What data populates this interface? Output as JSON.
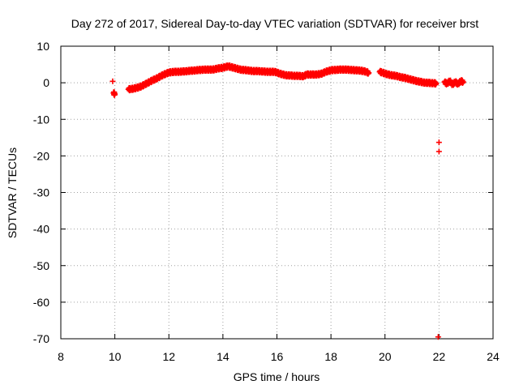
{
  "chart_data": {
    "type": "scatter",
    "title": "Day 272 of 2017, Sidereal Day-to-day VTEC variation (SDTVAR) for receiver brst",
    "xlabel": "GPS time / hours",
    "ylabel": "SDTVAR / TECUs",
    "xlim": [
      8,
      24
    ],
    "ylim": [
      -70,
      10
    ],
    "xticks": [
      8,
      10,
      12,
      14,
      16,
      18,
      20,
      22,
      24
    ],
    "yticks": [
      10,
      0,
      -10,
      -20,
      -30,
      -40,
      -50,
      -60,
      -70
    ],
    "grid": true,
    "marker": "plus",
    "color": "#ff0000",
    "series": [
      {
        "name": "brst",
        "points": [
          [
            9.92,
            0.4
          ],
          [
            9.95,
            -2.8
          ],
          [
            10.0,
            -3.1
          ],
          [
            10.5,
            -1.8
          ],
          [
            10.6,
            -1.7
          ],
          [
            10.7,
            -1.6
          ],
          [
            10.8,
            -1.4
          ],
          [
            10.9,
            -1.2
          ],
          [
            11.0,
            -0.9
          ],
          [
            11.1,
            -0.5
          ],
          [
            11.2,
            -0.1
          ],
          [
            11.3,
            0.3
          ],
          [
            11.4,
            0.7
          ],
          [
            11.5,
            1.0
          ],
          [
            11.6,
            1.4
          ],
          [
            11.7,
            1.8
          ],
          [
            11.8,
            2.2
          ],
          [
            11.9,
            2.5
          ],
          [
            12.0,
            2.8
          ],
          [
            12.1,
            2.9
          ],
          [
            12.2,
            3.0
          ],
          [
            12.3,
            3.0
          ],
          [
            12.4,
            3.0
          ],
          [
            12.5,
            3.1
          ],
          [
            12.6,
            3.1
          ],
          [
            12.7,
            3.2
          ],
          [
            12.8,
            3.3
          ],
          [
            12.9,
            3.3
          ],
          [
            13.0,
            3.4
          ],
          [
            13.1,
            3.5
          ],
          [
            13.2,
            3.5
          ],
          [
            13.3,
            3.6
          ],
          [
            13.4,
            3.6
          ],
          [
            13.5,
            3.6
          ],
          [
            13.6,
            3.6
          ],
          [
            13.7,
            3.7
          ],
          [
            13.8,
            3.9
          ],
          [
            13.9,
            4.0
          ],
          [
            14.0,
            4.1
          ],
          [
            14.1,
            4.3
          ],
          [
            14.2,
            4.5
          ],
          [
            14.3,
            4.3
          ],
          [
            14.4,
            4.1
          ],
          [
            14.5,
            3.9
          ],
          [
            14.6,
            3.7
          ],
          [
            14.7,
            3.5
          ],
          [
            14.8,
            3.5
          ],
          [
            14.9,
            3.4
          ],
          [
            15.0,
            3.3
          ],
          [
            15.1,
            3.2
          ],
          [
            15.2,
            3.2
          ],
          [
            15.3,
            3.2
          ],
          [
            15.4,
            3.1
          ],
          [
            15.5,
            3.1
          ],
          [
            15.6,
            3.0
          ],
          [
            15.7,
            3.0
          ],
          [
            15.8,
            3.0
          ],
          [
            15.9,
            3.0
          ],
          [
            16.0,
            2.8
          ],
          [
            16.1,
            2.5
          ],
          [
            16.2,
            2.3
          ],
          [
            16.3,
            2.1
          ],
          [
            16.4,
            2.0
          ],
          [
            16.5,
            2.0
          ],
          [
            16.6,
            1.9
          ],
          [
            16.7,
            1.9
          ],
          [
            16.8,
            1.9
          ],
          [
            16.9,
            1.8
          ],
          [
            17.0,
            1.8
          ],
          [
            17.1,
            2.3
          ],
          [
            17.2,
            2.2
          ],
          [
            17.3,
            2.3
          ],
          [
            17.4,
            2.2
          ],
          [
            17.5,
            2.3
          ],
          [
            17.6,
            2.4
          ],
          [
            17.7,
            2.6
          ],
          [
            17.8,
            3.0
          ],
          [
            17.9,
            3.2
          ],
          [
            18.0,
            3.4
          ],
          [
            18.1,
            3.5
          ],
          [
            18.2,
            3.5
          ],
          [
            18.3,
            3.6
          ],
          [
            18.4,
            3.6
          ],
          [
            18.5,
            3.6
          ],
          [
            18.6,
            3.6
          ],
          [
            18.7,
            3.5
          ],
          [
            18.8,
            3.5
          ],
          [
            18.9,
            3.4
          ],
          [
            19.0,
            3.4
          ],
          [
            19.1,
            3.3
          ],
          [
            19.2,
            3.2
          ],
          [
            19.3,
            3.0
          ],
          [
            19.4,
            2.7
          ],
          [
            19.8,
            3.0
          ],
          [
            19.9,
            2.8
          ],
          [
            20.0,
            2.5
          ],
          [
            20.1,
            2.3
          ],
          [
            20.2,
            2.1
          ],
          [
            20.3,
            2.0
          ],
          [
            20.4,
            1.9
          ],
          [
            20.5,
            1.7
          ],
          [
            20.6,
            1.5
          ],
          [
            20.7,
            1.4
          ],
          [
            20.8,
            1.2
          ],
          [
            20.9,
            1.0
          ],
          [
            21.0,
            0.8
          ],
          [
            21.1,
            0.6
          ],
          [
            21.2,
            0.4
          ],
          [
            21.3,
            0.3
          ],
          [
            21.4,
            0.1
          ],
          [
            21.5,
            0.0
          ],
          [
            21.6,
            0.0
          ],
          [
            21.7,
            -0.1
          ],
          [
            21.8,
            -0.1
          ],
          [
            21.9,
            -0.2
          ],
          [
            22.0,
            -16.3
          ],
          [
            22.0,
            -18.8
          ],
          [
            21.97,
            -69.5
          ],
          [
            22.2,
            0.2
          ],
          [
            22.3,
            -0.3
          ],
          [
            22.4,
            0.6
          ],
          [
            22.5,
            -0.6
          ],
          [
            22.6,
            0.3
          ],
          [
            22.7,
            -0.4
          ],
          [
            22.8,
            0.5
          ],
          [
            22.9,
            0.2
          ]
        ]
      }
    ]
  }
}
